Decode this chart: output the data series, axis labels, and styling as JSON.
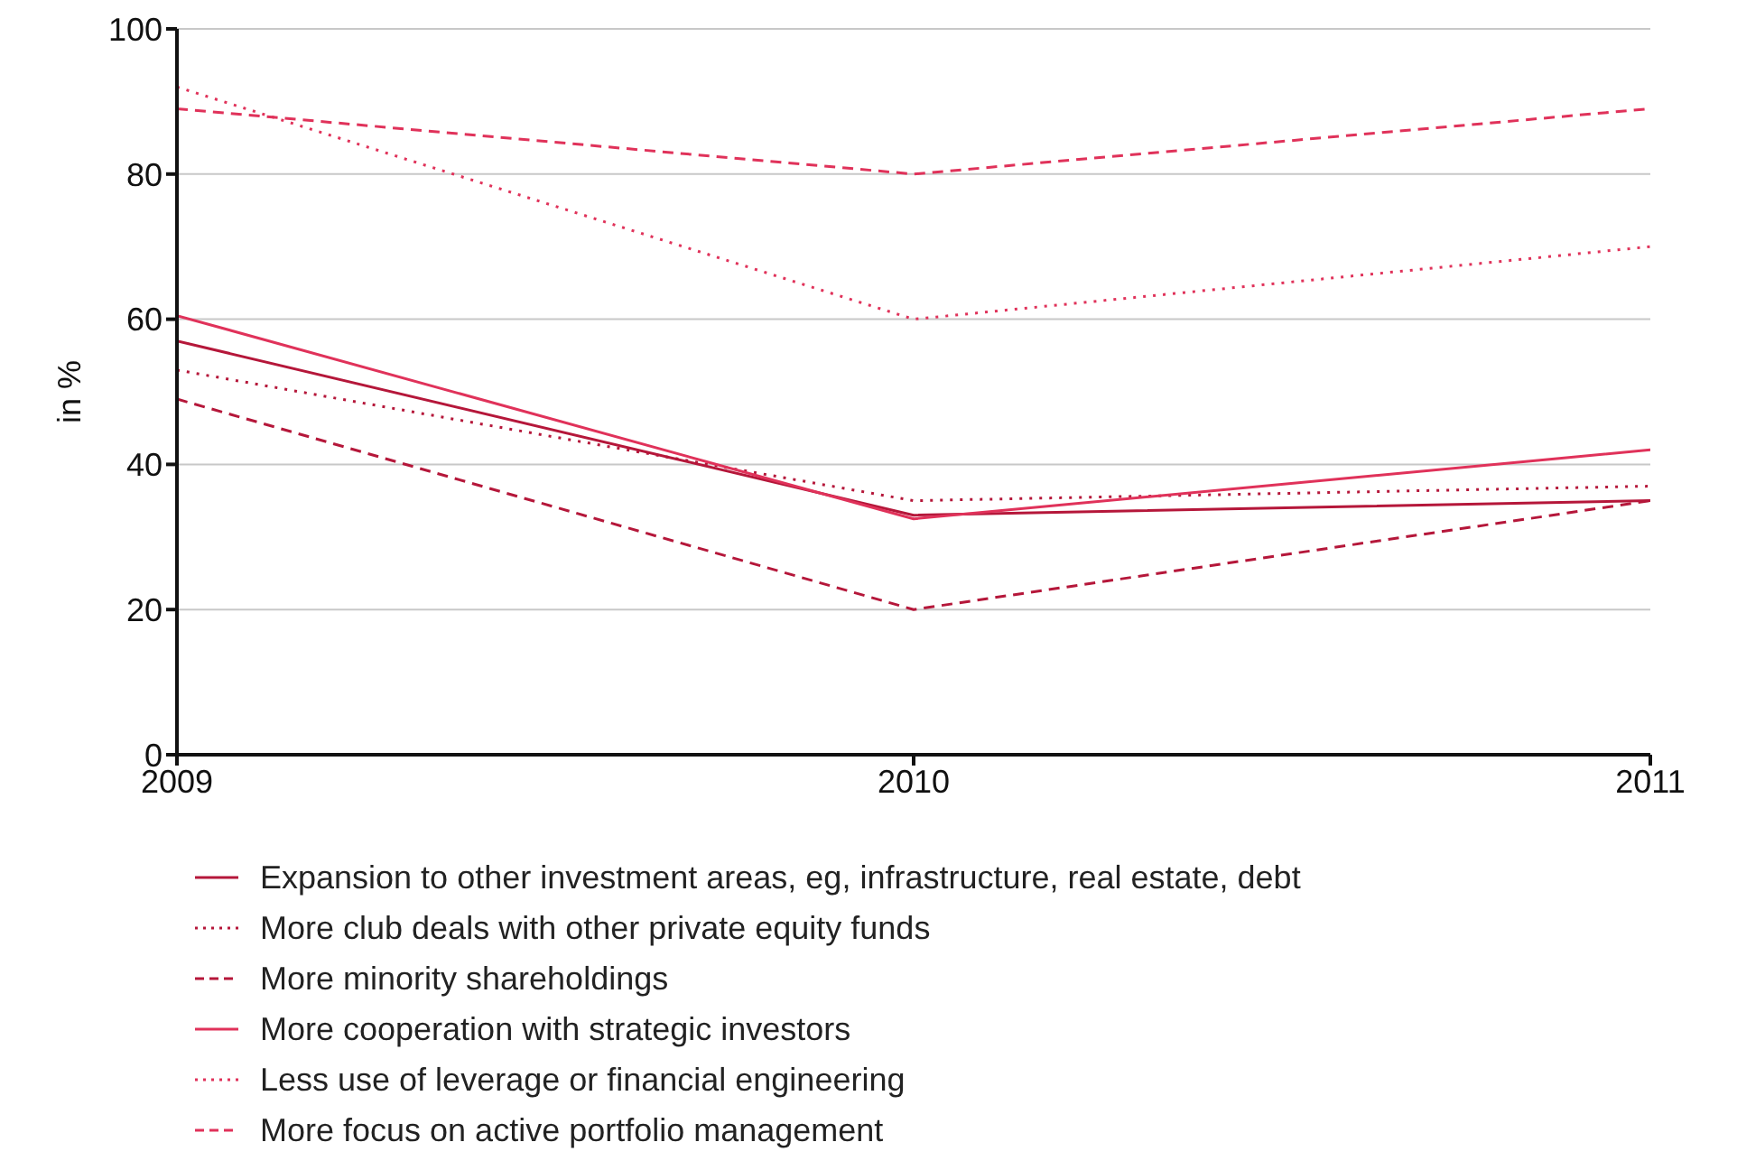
{
  "chart_data": {
    "type": "line",
    "ylabel": "in %",
    "x": [
      2009,
      2010,
      2011
    ],
    "xlim": [
      2009,
      2011
    ],
    "xticks": [
      2009,
      2010,
      2011
    ],
    "ylim": [
      0,
      100
    ],
    "yticks": [
      0,
      20,
      40,
      60,
      80,
      100
    ],
    "grid": "y",
    "legend": "bottom",
    "marker": "none",
    "series": [
      {
        "name": "Expansion to other investment areas, eg, infrastructure, real estate, debt",
        "color": "#b5173a",
        "line_style": "solid",
        "values": [
          57,
          33,
          35
        ]
      },
      {
        "name": "More club deals with other private equity funds",
        "color": "#b5173a",
        "line_style": "dotted",
        "values": [
          53,
          35,
          37
        ]
      },
      {
        "name": "More minority shareholdings",
        "color": "#b5173a",
        "line_style": "dashed",
        "values": [
          49,
          20,
          35
        ]
      },
      {
        "name": "More cooperation with strategic investors",
        "color": "#e0325a",
        "line_style": "solid",
        "values": [
          60.5,
          32.5,
          42
        ]
      },
      {
        "name": "Less use of leverage or financial engineering",
        "color": "#e0325a",
        "line_style": "dotted",
        "values": [
          92,
          60,
          70
        ]
      },
      {
        "name": "More focus on active portfolio management",
        "color": "#e0325a",
        "line_style": "dashed",
        "values": [
          89,
          80,
          89
        ]
      }
    ]
  }
}
